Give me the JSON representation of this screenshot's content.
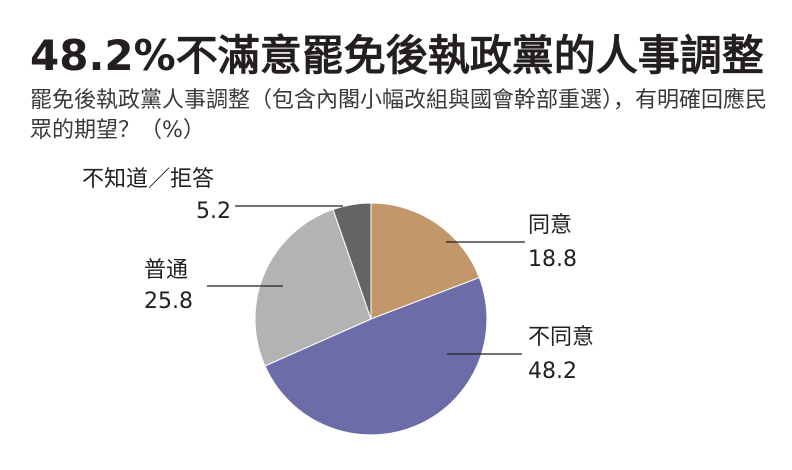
{
  "title": "48.2%不滿意罷免後執政黨的人事調整",
  "subtitle": "罷免後執政黨人事調整（包含內閣小幅改組與國會幹部重選），有明確回應民眾的期望？（%）",
  "chart_data": {
    "type": "pie",
    "title": "48.2%不滿意罷免後執政黨的人事調整",
    "subtitle": "罷免後執政黨人事調整（包含內閣小幅改組與國會幹部重選），有明確回應民眾的期望？（%）",
    "start": "12 o'clock",
    "direction": "clockwise",
    "slices": [
      {
        "label": "同意",
        "value": 18.8,
        "value_text": "18.8",
        "color": "#c4976b"
      },
      {
        "label": "不同意",
        "value": 48.2,
        "value_text": "48.2",
        "color": "#6c6ca8"
      },
      {
        "label": "普通",
        "value": 25.8,
        "value_text": "25.8",
        "color": "#b3b3b3"
      },
      {
        "label": "不知道／拒答",
        "value": 5.2,
        "value_text": "5.2",
        "color": "#646464"
      }
    ]
  }
}
